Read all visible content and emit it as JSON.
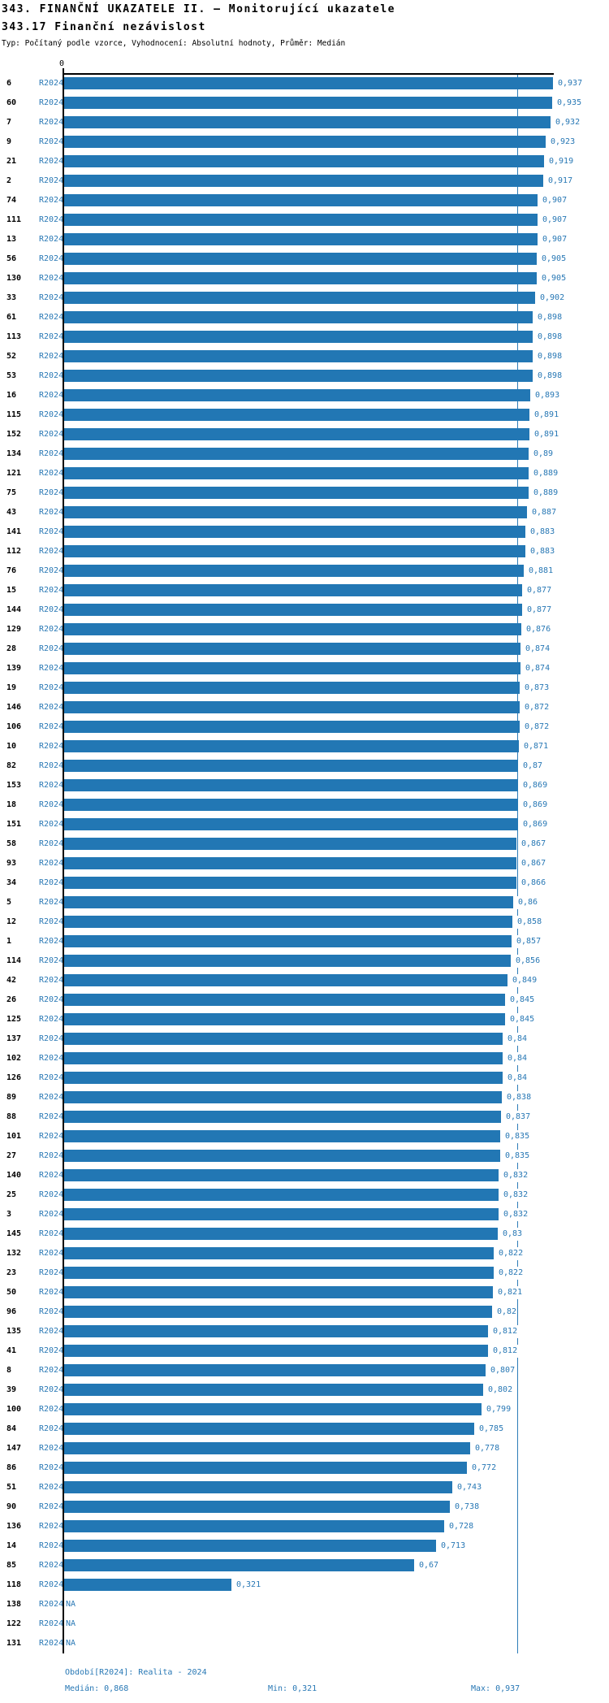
{
  "header": {
    "title": "343. FINANČNÍ UKAZATELE II. – Monitorující ukazatele",
    "subtitle": "343.17 Finanční nezávislost",
    "meta": "Typ: Počítaný podle vzorce, Vyhodnocení: Absolutní hodnoty, Průměr: Medián"
  },
  "axis": {
    "zero_tick": "0"
  },
  "chart_data": {
    "type": "bar",
    "orientation": "horizontal",
    "title": "343.17 Finanční nezávislost",
    "series_label": "R2024",
    "xlim": [
      0,
      0.937
    ],
    "median": 0.868,
    "min": 0.321,
    "max": 0.937,
    "na_label": "NA",
    "categories": [
      "6",
      "60",
      "7",
      "9",
      "21",
      "2",
      "74",
      "111",
      "13",
      "56",
      "130",
      "33",
      "61",
      "113",
      "52",
      "53",
      "16",
      "115",
      "152",
      "134",
      "121",
      "75",
      "43",
      "141",
      "112",
      "76",
      "15",
      "144",
      "129",
      "28",
      "139",
      "19",
      "146",
      "106",
      "10",
      "82",
      "153",
      "18",
      "151",
      "58",
      "93",
      "34",
      "5",
      "12",
      "1",
      "114",
      "42",
      "26",
      "125",
      "137",
      "102",
      "126",
      "89",
      "88",
      "101",
      "27",
      "140",
      "25",
      "3",
      "145",
      "132",
      "23",
      "50",
      "96",
      "135",
      "41",
      "8",
      "39",
      "100",
      "84",
      "147",
      "86",
      "51",
      "90",
      "136",
      "14",
      "85",
      "118",
      "138",
      "122",
      "131"
    ],
    "values": [
      0.937,
      0.935,
      0.932,
      0.923,
      0.919,
      0.917,
      0.907,
      0.907,
      0.907,
      0.905,
      0.905,
      0.902,
      0.898,
      0.898,
      0.898,
      0.898,
      0.893,
      0.891,
      0.891,
      0.89,
      0.889,
      0.889,
      0.887,
      0.883,
      0.883,
      0.881,
      0.877,
      0.877,
      0.876,
      0.874,
      0.874,
      0.873,
      0.872,
      0.872,
      0.871,
      0.87,
      0.869,
      0.869,
      0.869,
      0.867,
      0.867,
      0.866,
      0.86,
      0.858,
      0.857,
      0.856,
      0.849,
      0.845,
      0.845,
      0.84,
      0.84,
      0.84,
      0.838,
      0.837,
      0.835,
      0.835,
      0.832,
      0.832,
      0.832,
      0.83,
      0.822,
      0.822,
      0.821,
      0.82,
      0.812,
      0.812,
      0.807,
      0.802,
      0.799,
      0.785,
      0.778,
      0.772,
      0.743,
      0.738,
      0.728,
      0.713,
      0.67,
      0.321,
      null,
      null,
      null
    ],
    "value_labels": [
      "0,937",
      "0,935",
      "0,932",
      "0,923",
      "0,919",
      "0,917",
      "0,907",
      "0,907",
      "0,907",
      "0,905",
      "0,905",
      "0,902",
      "0,898",
      "0,898",
      "0,898",
      "0,898",
      "0,893",
      "0,891",
      "0,891",
      "0,89",
      "0,889",
      "0,889",
      "0,887",
      "0,883",
      "0,883",
      "0,881",
      "0,877",
      "0,877",
      "0,876",
      "0,874",
      "0,874",
      "0,873",
      "0,872",
      "0,872",
      "0,871",
      "0,87",
      "0,869",
      "0,869",
      "0,869",
      "0,867",
      "0,867",
      "0,866",
      "0,86",
      "0,858",
      "0,857",
      "0,856",
      "0,849",
      "0,845",
      "0,845",
      "0,84",
      "0,84",
      "0,84",
      "0,838",
      "0,837",
      "0,835",
      "0,835",
      "0,832",
      "0,832",
      "0,832",
      "0,83",
      "0,822",
      "0,822",
      "0,821",
      "0,82",
      "0,812",
      "0,812",
      "0,807",
      "0,802",
      "0,799",
      "0,785",
      "0,778",
      "0,772",
      "0,743",
      "0,738",
      "0,728",
      "0,713",
      "0,67",
      "0,321",
      "NA",
      "NA",
      "NA"
    ]
  },
  "footer": {
    "period": "Období[R2024]: Realita - 2024",
    "median": "Medián: 0,868",
    "min": "Min: 0,321",
    "max": "Max: 0,937"
  },
  "colors": {
    "bar": "#2277b4",
    "text_blue": "#2878b5",
    "median_line": "#2e7cb8"
  }
}
